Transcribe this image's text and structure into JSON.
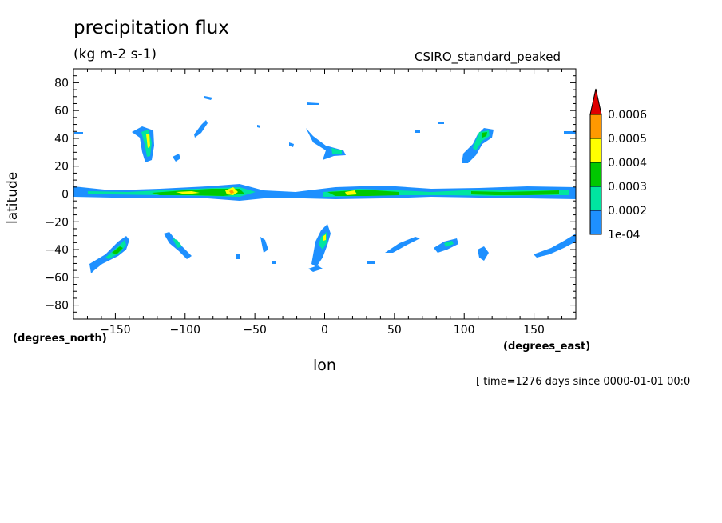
{
  "header": {
    "title": "precipitation flux",
    "units": "(kg m-2 s-1)",
    "model": "CSIRO_standard_peaked",
    "timestamp": "[ time=1276 days since 0000-01-01 00:0"
  },
  "chart_data": {
    "type": "heatmap",
    "title": "precipitation flux",
    "subtitle": "(kg m-2 s-1)",
    "xlabel": "lon",
    "ylabel": "latitude",
    "x_units": "(degrees_east)",
    "y_units": "(degrees_north)",
    "xlim": [
      -180,
      180
    ],
    "ylim": [
      -90,
      90
    ],
    "x_ticks": [
      -150,
      -100,
      -50,
      0,
      50,
      100,
      150
    ],
    "y_ticks": [
      80,
      60,
      40,
      20,
      0,
      -20,
      -40,
      -60,
      -80
    ],
    "colorbar": {
      "levels": [
        "1e-04",
        "0.0002",
        "0.0003",
        "0.0004",
        "0.0005",
        "0.0006"
      ],
      "values": [
        0.0001,
        0.0002,
        0.0003,
        0.0004,
        0.0005,
        0.0006
      ],
      "colors": [
        "#1e90ff",
        "#00e5a0",
        "#00c800",
        "#ffff00",
        "#ff9900",
        "#e00000"
      ]
    },
    "features": [
      {
        "kind": "band",
        "lon_range": [
          -180,
          180
        ],
        "lat_range": [
          -3,
          5
        ],
        "level": 1,
        "note": "equatorial rain band"
      },
      {
        "kind": "blob",
        "lon": -72,
        "lat": 1.5,
        "level": 4
      },
      {
        "kind": "blob",
        "lon": -100,
        "lat": 1.5,
        "level": 4
      },
      {
        "kind": "blob",
        "lon": 15,
        "lat": 0.5,
        "level": 4
      },
      {
        "kind": "blob",
        "lon": 30,
        "lat": 1.5,
        "level": 3
      },
      {
        "kind": "blob",
        "lon": 160,
        "lat": 1.5,
        "level": 3
      },
      {
        "kind": "blob",
        "lon": -128,
        "lat": 35,
        "level": 3
      },
      {
        "kind": "blob",
        "lon": 112,
        "lat": 42,
        "level": 3
      },
      {
        "kind": "blob",
        "lon": 2,
        "lat": -32,
        "level": 3
      },
      {
        "kind": "blob",
        "lon": -145,
        "lat": -40,
        "level": 2
      }
    ]
  }
}
